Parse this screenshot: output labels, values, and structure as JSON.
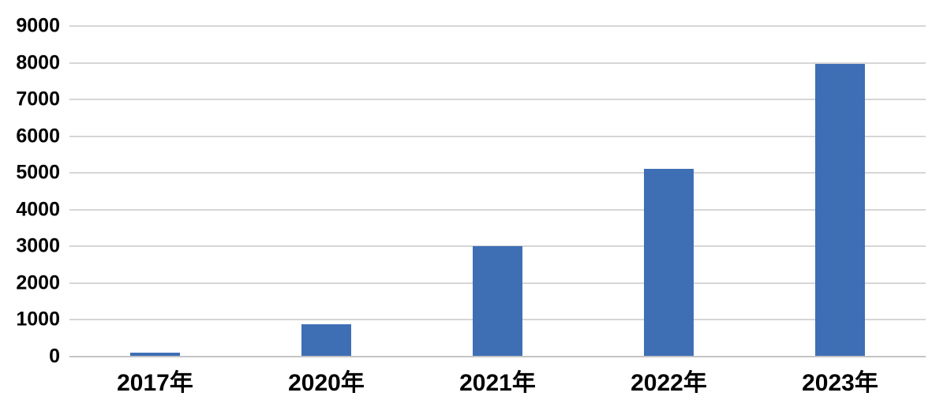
{
  "chart_data": {
    "type": "bar",
    "title": "",
    "xlabel": "",
    "ylabel": "",
    "categories": [
      "2017年",
      "2020年",
      "2021年",
      "2022年",
      "2023年"
    ],
    "values": [
      100,
      880,
      3010,
      5110,
      7970
    ],
    "ylim": [
      0,
      9000
    ],
    "y_ticks": [
      0,
      1000,
      2000,
      3000,
      4000,
      5000,
      6000,
      7000,
      8000,
      9000
    ],
    "grid": "horizontal",
    "legend": "none",
    "colors": {
      "bar": "#3E6FB5",
      "gridline": "#D6D6D6",
      "axis_line": "#C4C4C4",
      "label": "#000000",
      "background": "#FFFFFF"
    }
  }
}
